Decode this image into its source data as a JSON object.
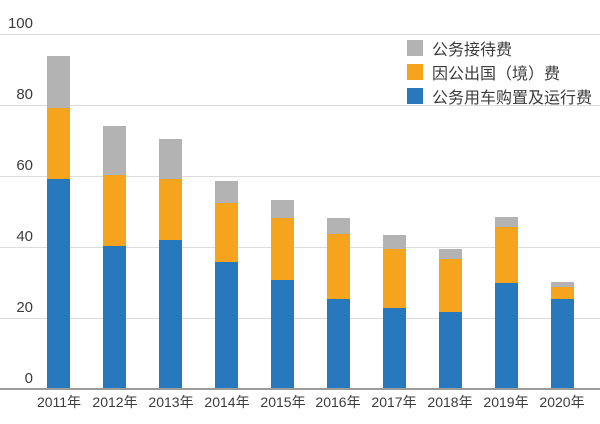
{
  "chart_data": {
    "type": "bar",
    "stacked": true,
    "title": "",
    "categories": [
      "2011年",
      "2012年",
      "2013年",
      "2014年",
      "2015年",
      "2016年",
      "2017年",
      "2018年",
      "2019年",
      "2020年"
    ],
    "series": [
      {
        "name": "公务用车购置及运行费",
        "color": "#2878bd",
        "values": [
          59.2,
          40.3,
          42.0,
          35.8,
          30.6,
          25.4,
          22.8,
          21.8,
          29.9,
          25.4
        ]
      },
      {
        "name": "因公出国（境）费",
        "color": "#f6a41d",
        "values": [
          19.9,
          19.8,
          17.1,
          16.4,
          17.4,
          18.3,
          16.7,
          14.9,
          15.8,
          3.4
        ]
      },
      {
        "name": "公务接待费",
        "color": "#b3b3b3",
        "values": [
          14.5,
          13.8,
          11.2,
          6.2,
          5.3,
          4.3,
          3.9,
          2.6,
          2.7,
          1.4
        ]
      }
    ],
    "totals": [
      93.6,
      73.9,
      70.3,
      58.4,
      53.3,
      48.0,
      43.4,
      39.3,
      48.4,
      30.2
    ],
    "xlabel": "",
    "ylabel": "",
    "ylim": [
      0,
      100
    ],
    "yticks": [
      0,
      20,
      40,
      60,
      80,
      100
    ],
    "grid": true,
    "legend_position": "top-right",
    "legend": [
      {
        "label": "公务接待费",
        "color": "#b3b3b3"
      },
      {
        "label": "因公出国（境）费",
        "color": "#f6a41d"
      },
      {
        "label": "公务用车购置及运行费",
        "color": "#2878bd"
      }
    ]
  },
  "colors": {
    "background": "#ffffff",
    "gridline": "#dcdcdc",
    "axis_line": "#9c9c9c",
    "text": "#3c3c3c"
  }
}
